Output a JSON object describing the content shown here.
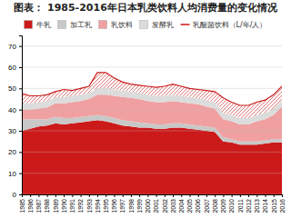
{
  "chart_data": {
    "type": "area",
    "title": "图表：  1985-2016年日本乳类饮料人均消费量的变化情况",
    "x": [
      1985,
      1986,
      1987,
      1988,
      1989,
      1990,
      1991,
      1992,
      1993,
      1994,
      1995,
      1996,
      1997,
      1998,
      1999,
      2000,
      2001,
      2002,
      2003,
      2004,
      2005,
      2006,
      2007,
      2008,
      2009,
      2010,
      2011,
      2012,
      2013,
      2014,
      2015,
      2016
    ],
    "series": [
      {
        "name": "牛乳",
        "type": "area",
        "color": "#cc1a1a",
        "values": [
          30.0,
          31.0,
          32.0,
          32.5,
          33.5,
          33.0,
          33.5,
          34.0,
          34.5,
          35.0,
          34.5,
          33.5,
          32.5,
          32.0,
          31.5,
          31.5,
          31.0,
          31.0,
          31.5,
          31.5,
          31.0,
          30.5,
          30.0,
          29.5,
          25.0,
          24.5,
          23.5,
          23.5,
          23.5,
          24.0,
          24.5,
          24.5
        ]
      },
      {
        "name": "加工乳",
        "type": "area",
        "color": "#c8c8c8",
        "values": [
          5.5,
          4.5,
          3.5,
          3.0,
          3.0,
          3.0,
          2.5,
          2.5,
          2.5,
          2.5,
          2.5,
          2.5,
          2.5,
          2.5,
          2.5,
          2.0,
          2.0,
          2.0,
          2.0,
          2.0,
          2.0,
          2.0,
          2.0,
          2.0,
          2.0,
          1.5,
          1.5,
          1.5,
          1.5,
          1.5,
          1.5,
          1.5
        ]
      },
      {
        "name": "乳饮料",
        "type": "area",
        "color": "#f0a0a0",
        "values": [
          4.5,
          4.5,
          5.0,
          5.5,
          6.5,
          7.0,
          7.5,
          7.5,
          8.0,
          9.5,
          10.0,
          10.5,
          11.0,
          11.0,
          11.0,
          10.5,
          10.5,
          10.5,
          10.5,
          10.0,
          10.0,
          10.0,
          9.5,
          9.0,
          8.5,
          8.5,
          8.0,
          8.0,
          9.5,
          10.0,
          11.5,
          15.5
        ]
      },
      {
        "name": "发酵乳",
        "type": "area",
        "color": "#dcdcdc",
        "values": [
          3.0,
          3.0,
          3.0,
          3.0,
          3.0,
          3.0,
          3.0,
          3.0,
          3.0,
          3.0,
          3.0,
          3.0,
          3.0,
          3.0,
          3.0,
          3.0,
          3.0,
          3.0,
          3.0,
          3.0,
          3.0,
          3.0,
          3.0,
          3.0,
          3.0,
          3.0,
          3.0,
          3.0,
          3.0,
          3.0,
          3.0,
          3.0
        ]
      },
      {
        "name": "乳酸菌饮料（L/年/人）",
        "type": "line",
        "color": "#cc1a1a",
        "values": [
          47.5,
          46.5,
          46.5,
          47.0,
          48.5,
          49.5,
          49.0,
          50.0,
          51.0,
          57.5,
          57.5,
          55.0,
          53.0,
          52.0,
          51.5,
          51.0,
          50.5,
          51.0,
          52.0,
          51.0,
          50.0,
          49.5,
          49.0,
          48.5,
          45.5,
          43.5,
          42.0,
          42.0,
          43.5,
          44.5,
          47.0,
          51.0
        ]
      }
    ],
    "stacked": true,
    "xlim": [
      1985,
      2016
    ],
    "xticks": [
      1985,
      1986,
      1987,
      1988,
      1989,
      1990,
      1991,
      1992,
      1993,
      1994,
      1995,
      1996,
      1997,
      1998,
      1999,
      2000,
      2001,
      2002,
      2003,
      2004,
      2005,
      2006,
      2007,
      2008,
      2009,
      2010,
      2011,
      2012,
      2013,
      2014,
      2015,
      2016
    ],
    "ylim": [
      0,
      75
    ],
    "yticks": [
      0,
      10,
      20,
      30,
      40,
      50,
      60,
      70
    ],
    "grid": true,
    "legend": "top"
  }
}
